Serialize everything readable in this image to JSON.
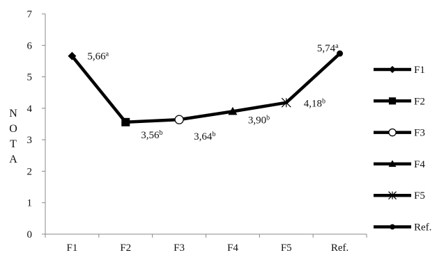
{
  "chart_data": {
    "type": "line",
    "title": "",
    "xlabel": "",
    "ylabel_letters": [
      "N",
      "O",
      "T",
      "A"
    ],
    "categories": [
      "F1",
      "F2",
      "F3",
      "F4",
      "F5",
      "Ref."
    ],
    "ylim": [
      0,
      7
    ],
    "yticks": [
      0,
      1,
      2,
      3,
      4,
      5,
      6,
      7
    ],
    "values": [
      5.66,
      3.56,
      3.64,
      3.9,
      4.18,
      5.74
    ],
    "point_markers": [
      "diamond",
      "square",
      "circle-open",
      "triangle",
      "star",
      "circle"
    ],
    "data_labels": [
      {
        "value": "5,66",
        "sup": "a"
      },
      {
        "value": "3,56",
        "sup": "b"
      },
      {
        "value": "3,64",
        "sup": "b"
      },
      {
        "value": "3,90",
        "sup": "b"
      },
      {
        "value": "4,18",
        "sup": "b"
      },
      {
        "value": "5,74",
        "sup": "a"
      }
    ],
    "legend": {
      "placement": "right",
      "entries": [
        {
          "label": "F1",
          "marker": "diamond"
        },
        {
          "label": "F2",
          "marker": "square"
        },
        {
          "label": "F3",
          "marker": "circle-open"
        },
        {
          "label": "F4",
          "marker": "triangle"
        },
        {
          "label": "F5",
          "marker": "star"
        },
        {
          "label": "Ref.",
          "marker": "circle"
        }
      ]
    },
    "grid": false,
    "line_color": "#000000"
  }
}
